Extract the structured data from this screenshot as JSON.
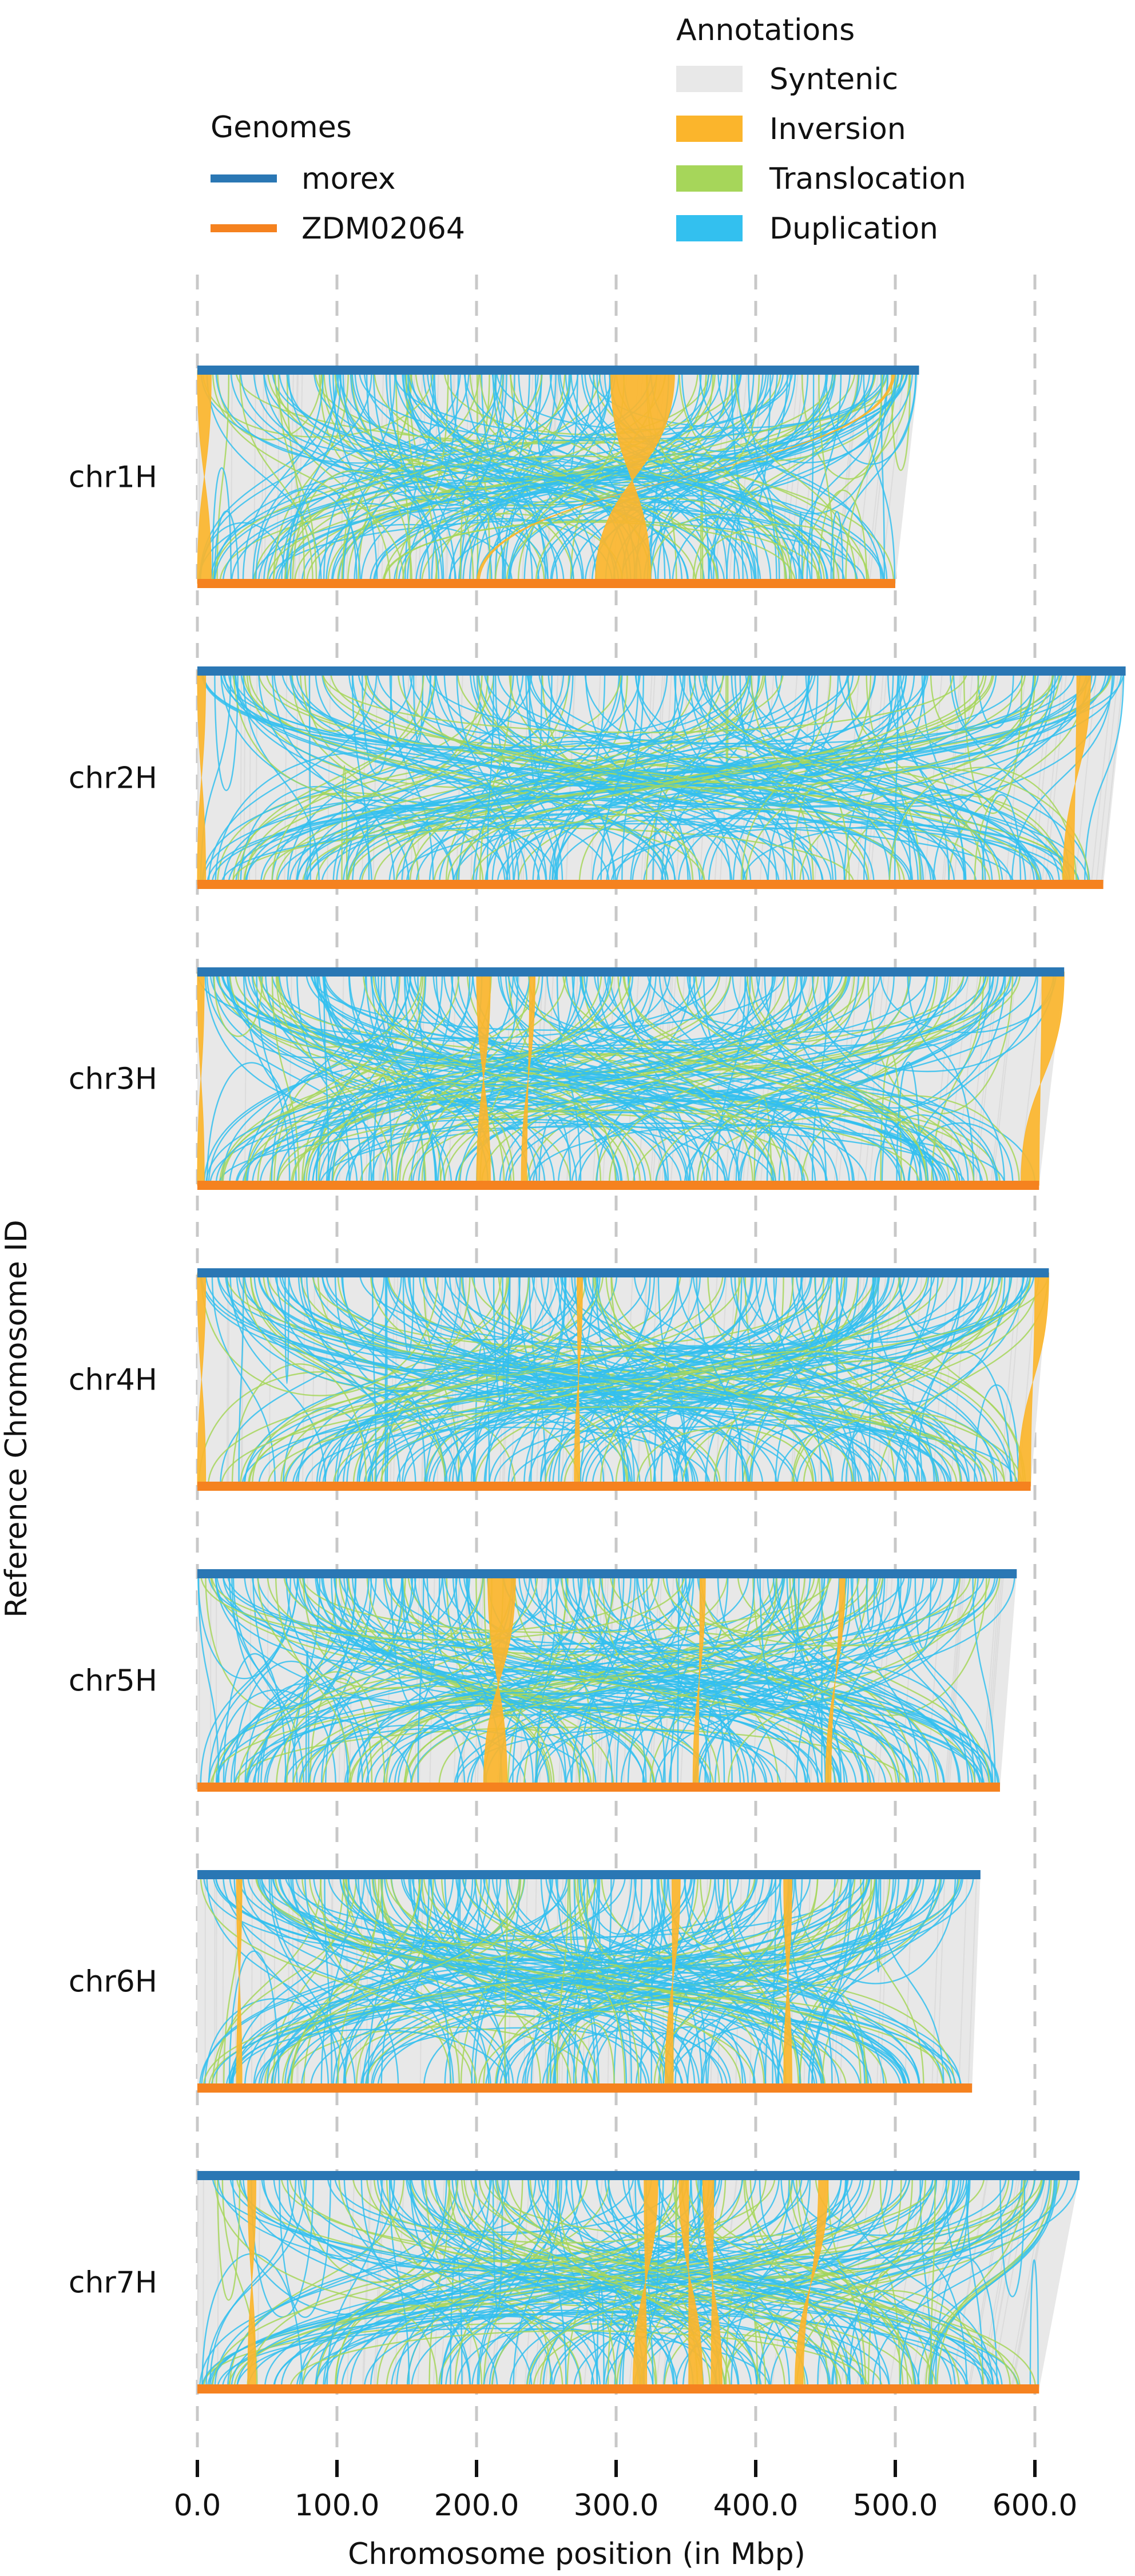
{
  "chart_data": {
    "type": "synteny",
    "xlabel": "Chromosome position (in Mbp)",
    "ylabel": "Reference Chromosome ID",
    "xlim": [
      0,
      650
    ],
    "x_ticks": [
      0,
      100,
      200,
      300,
      400,
      500,
      600
    ],
    "x_tick_labels": [
      "0.0",
      "100.0",
      "200.0",
      "300.0",
      "400.0",
      "500.0",
      "600.0"
    ],
    "grid": "vertical dashed",
    "genomes_legend": {
      "title": "Genomes",
      "placement": "top-left",
      "entries": [
        {
          "name": "morex",
          "color": "#2a77b4"
        },
        {
          "name": "ZDM02064",
          "color": "#f5821f"
        }
      ]
    },
    "annotations_legend": {
      "title": "Annotations",
      "placement": "top-right",
      "entries": [
        {
          "name": "Syntenic",
          "color": "#e8e8e8"
        },
        {
          "name": "Inversion",
          "color": "#fbb52c"
        },
        {
          "name": "Translocation",
          "color": "#a6d65a"
        },
        {
          "name": "Duplication",
          "color": "#33c0ef"
        }
      ]
    },
    "chromosomes": [
      {
        "id": "chr1H",
        "ref_length": 517,
        "qry_length": 500,
        "inversions": [
          {
            "ref": [
              296,
              342
            ],
            "qry": [
              285,
              325
            ]
          },
          {
            "ref": [
              0,
              10
            ],
            "qry": [
              0,
              10
            ]
          },
          {
            "ref": [
              498,
              500
            ],
            "qry": [
              200,
              202
            ]
          }
        ]
      },
      {
        "id": "chr2H",
        "ref_length": 665,
        "qry_length": 649,
        "inversions": [
          {
            "ref": [
              0,
              6
            ],
            "qry": [
              0,
              6
            ]
          },
          {
            "ref": [
              630,
              640
            ],
            "qry": [
              620,
              628
            ]
          }
        ]
      },
      {
        "id": "chr3H",
        "ref_length": 621,
        "qry_length": 603,
        "inversions": [
          {
            "ref": [
              200,
              210
            ],
            "qry": [
              200,
              210
            ]
          },
          {
            "ref": [
              238,
              242
            ],
            "qry": [
              232,
              236
            ]
          },
          {
            "ref": [
              0,
              5
            ],
            "qry": [
              0,
              5
            ]
          },
          {
            "ref": [
              605,
              621
            ],
            "qry": [
              590,
              603
            ]
          }
        ]
      },
      {
        "id": "chr4H",
        "ref_length": 610,
        "qry_length": 597,
        "inversions": [
          {
            "ref": [
              600,
              610
            ],
            "qry": [
              588,
              597
            ]
          },
          {
            "ref": [
              272,
              276
            ],
            "qry": [
              270,
              274
            ]
          },
          {
            "ref": [
              0,
              6
            ],
            "qry": [
              0,
              6
            ]
          }
        ]
      },
      {
        "id": "chr5H",
        "ref_length": 587,
        "qry_length": 575,
        "inversions": [
          {
            "ref": [
              208,
              228
            ],
            "qry": [
              205,
              222
            ]
          },
          {
            "ref": [
              360,
              364
            ],
            "qry": [
              355,
              359
            ]
          },
          {
            "ref": [
              460,
              464
            ],
            "qry": [
              450,
              454
            ]
          }
        ]
      },
      {
        "id": "chr6H",
        "ref_length": 561,
        "qry_length": 555,
        "inversions": [
          {
            "ref": [
              340,
              346
            ],
            "qry": [
              335,
              341
            ]
          },
          {
            "ref": [
              420,
              426
            ],
            "qry": [
              420,
              426
            ]
          },
          {
            "ref": [
              28,
              32
            ],
            "qry": [
              28,
              32
            ]
          }
        ]
      },
      {
        "id": "chr7H",
        "ref_length": 632,
        "qry_length": 603,
        "inversions": [
          {
            "ref": [
              320,
              330
            ],
            "qry": [
              312,
              322
            ]
          },
          {
            "ref": [
              345,
              352
            ],
            "qry": [
              352,
              362
            ]
          },
          {
            "ref": [
              362,
              370
            ],
            "qry": [
              368,
              376
            ]
          },
          {
            "ref": [
              445,
              452
            ],
            "qry": [
              428,
              434
            ]
          },
          {
            "ref": [
              36,
              42
            ],
            "qry": [
              36,
              42
            ]
          }
        ]
      }
    ]
  }
}
